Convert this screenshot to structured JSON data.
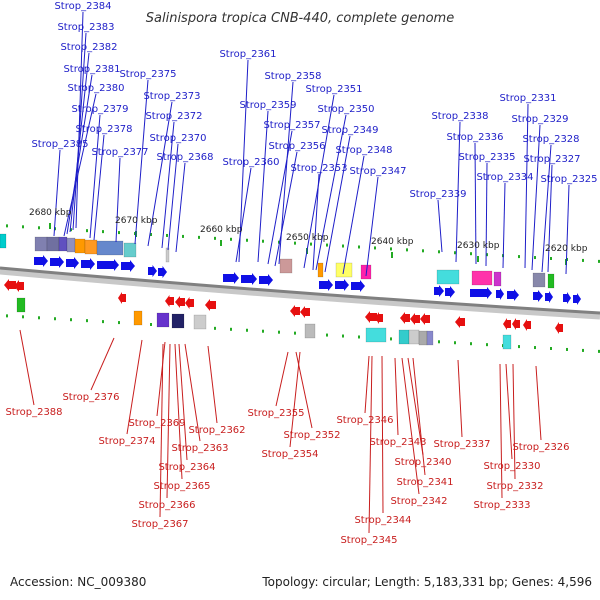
{
  "title": "Salinispora tropica CNB-440, complete genome",
  "footer": {
    "accession": "Accession: NC_009380",
    "topology": "Topology: circular; Length: 5,183,331 bp; Genes: 4,596"
  },
  "colors": {
    "forward": "#1010e6",
    "reverse": "#e61010",
    "forward_label": "#1e1ec8",
    "reverse_label": "#c81e1e",
    "backbone": "#808080",
    "tick": "#22aa22"
  },
  "scale_ticks": [
    "2680 kbp",
    "2670 kbp",
    "2660 kbp",
    "2650 kbp",
    "2640 kbp",
    "2630 kbp",
    "2620 kbp"
  ],
  "forward_genes": [
    "Strop_2384",
    "Strop_2383",
    "Strop_2382",
    "Strop_2381",
    "Strop_2380",
    "Strop_2379",
    "Strop_2378",
    "Strop_2385",
    "Strop_2377",
    "Strop_2375",
    "Strop_2373",
    "Strop_2372",
    "Strop_2370",
    "Strop_2368",
    "Strop_2361",
    "Strop_2358",
    "Strop_2359",
    "Strop_2357",
    "Strop_2356",
    "Strop_2360",
    "Strop_2351",
    "Strop_2350",
    "Strop_2349",
    "Strop_2348",
    "Strop_2353",
    "Strop_2347",
    "Strop_2338",
    "Strop_2336",
    "Strop_2335",
    "Strop_2339",
    "Strop_2334",
    "Strop_2331",
    "Strop_2329",
    "Strop_2328",
    "Strop_2327",
    "Strop_2325"
  ],
  "reverse_genes": [
    "Strop_2376",
    "Strop_2388",
    "Strop_2369",
    "Strop_2374",
    "Strop_2362",
    "Strop_2363",
    "Strop_2364",
    "Strop_2365",
    "Strop_2366",
    "Strop_2367",
    "Strop_2355",
    "Strop_2352",
    "Strop_2354",
    "Strop_2346",
    "Strop_2343",
    "Strop_2340",
    "Strop_2341",
    "Strop_2342",
    "Strop_2344",
    "Strop_2345",
    "Strop_2337",
    "Strop_2326",
    "Strop_2330",
    "Strop_2332",
    "Strop_2333"
  ]
}
